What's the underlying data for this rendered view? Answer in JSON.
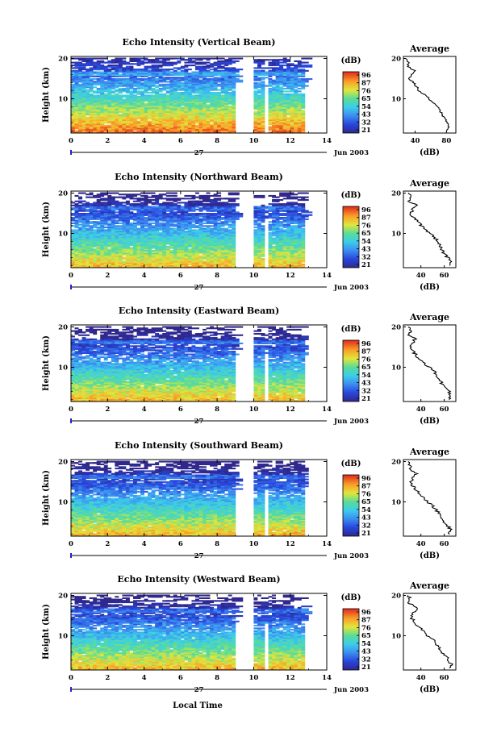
{
  "figure": {
    "xlabel": "Local Time",
    "date_label": "27",
    "month_label": "Jun 2003",
    "unit_label": "(dB)",
    "colorbar_ticks": [
      "96",
      "87",
      "76",
      "65",
      "54",
      "43",
      "32",
      "21"
    ],
    "average_title": "Average",
    "average_xlabel": "(dB)"
  },
  "chart_data": [
    {
      "type": "heatmap",
      "title": "Echo Intensity (Vertical Beam)",
      "ylabel": "Height (km)",
      "x_ticks": [
        "0",
        "2",
        "4",
        "6",
        "8",
        "10",
        "12",
        "14"
      ],
      "y_ticks": [
        "20",
        "10"
      ],
      "xlim": [
        0,
        14
      ],
      "ylim": [
        1.5,
        20.5
      ],
      "z_range": [
        21,
        96
      ],
      "data_gaps_hours": [
        [
          9.0,
          10.0
        ],
        [
          10.55,
          10.8
        ],
        [
          12.7,
          14.0
        ]
      ],
      "average_profile": {
        "x_ticks": [
          "40",
          "80"
        ],
        "y_ticks": [
          "20",
          "10"
        ],
        "xlim": [
          25,
          92
        ],
        "height_km": [
          2,
          3,
          4,
          5,
          6,
          7,
          8,
          9,
          10,
          11,
          12,
          13,
          14,
          15,
          16,
          17,
          18,
          19,
          20
        ],
        "db": [
          80,
          84,
          82,
          78,
          75,
          72,
          68,
          64,
          58,
          52,
          45,
          42,
          38,
          32,
          35,
          40,
          30,
          32,
          28
        ]
      }
    },
    {
      "type": "heatmap",
      "title": "Echo Intensity (Northward Beam)",
      "ylabel": "Height (km)",
      "x_ticks": [
        "0",
        "2",
        "4",
        "6",
        "8",
        "10",
        "12",
        "14"
      ],
      "y_ticks": [
        "20",
        "10"
      ],
      "xlim": [
        0,
        14
      ],
      "ylim": [
        1.5,
        20.5
      ],
      "z_range": [
        21,
        96
      ],
      "data_gaps_hours": [
        [
          9.0,
          10.0
        ],
        [
          10.55,
          10.8
        ],
        [
          12.7,
          14.0
        ]
      ],
      "average_profile": {
        "x_ticks": [
          "40",
          "60"
        ],
        "y_ticks": [
          "20",
          "10"
        ],
        "xlim": [
          25,
          70
        ],
        "height_km": [
          2,
          3,
          4,
          5,
          6,
          7,
          8,
          9,
          10,
          11,
          12,
          13,
          14,
          15,
          16,
          17,
          18,
          19,
          20
        ],
        "db": [
          64,
          66,
          63,
          60,
          58,
          56,
          54,
          52,
          48,
          44,
          40,
          37,
          34,
          31,
          33,
          36,
          30,
          31,
          29
        ]
      }
    },
    {
      "type": "heatmap",
      "title": "Echo Intensity (Eastward Beam)",
      "ylabel": "Height (km)",
      "x_ticks": [
        "0",
        "2",
        "4",
        "6",
        "8",
        "10",
        "12",
        "14"
      ],
      "y_ticks": [
        "20",
        "10"
      ],
      "xlim": [
        0,
        14
      ],
      "ylim": [
        1.5,
        20.5
      ],
      "z_range": [
        21,
        96
      ],
      "data_gaps_hours": [
        [
          9.0,
          10.0
        ],
        [
          10.55,
          10.8
        ],
        [
          12.7,
          14.0
        ]
      ],
      "average_profile": {
        "x_ticks": [
          "40",
          "60"
        ],
        "y_ticks": [
          "20",
          "10"
        ],
        "xlim": [
          25,
          70
        ],
        "height_km": [
          2,
          3,
          4,
          5,
          6,
          7,
          8,
          9,
          10,
          11,
          12,
          13,
          14,
          15,
          16,
          17,
          18,
          19,
          20
        ],
        "db": [
          64,
          66,
          64,
          61,
          58,
          56,
          54,
          51,
          47,
          43,
          39,
          36,
          33,
          31,
          33,
          35,
          30,
          31,
          29
        ]
      }
    },
    {
      "type": "heatmap",
      "title": "Echo Intensity (Southward Beam)",
      "ylabel": "Height (km)",
      "x_ticks": [
        "0",
        "2",
        "4",
        "6",
        "8",
        "10",
        "12",
        "14"
      ],
      "y_ticks": [
        "20",
        "10"
      ],
      "xlim": [
        0,
        14
      ],
      "ylim": [
        1.5,
        20.5
      ],
      "z_range": [
        21,
        96
      ],
      "data_gaps_hours": [
        [
          9.0,
          10.0
        ],
        [
          10.55,
          10.8
        ],
        [
          12.7,
          14.0
        ]
      ],
      "average_profile": {
        "x_ticks": [
          "40",
          "60"
        ],
        "y_ticks": [
          "20",
          "10"
        ],
        "xlim": [
          25,
          70
        ],
        "height_km": [
          2,
          3,
          4,
          5,
          6,
          7,
          8,
          9,
          10,
          11,
          12,
          13,
          14,
          15,
          16,
          17,
          18,
          19,
          20
        ],
        "db": [
          64,
          66,
          63,
          60,
          58,
          56,
          53,
          50,
          46,
          42,
          39,
          36,
          33,
          31,
          33,
          36,
          30,
          31,
          29
        ]
      }
    },
    {
      "type": "heatmap",
      "title": "Echo Intensity (Westward Beam)",
      "ylabel": "Height (km)",
      "x_ticks": [
        "0",
        "2",
        "4",
        "6",
        "8",
        "10",
        "12",
        "14"
      ],
      "y_ticks": [
        "20",
        "10"
      ],
      "xlim": [
        0,
        14
      ],
      "ylim": [
        1.5,
        20.5
      ],
      "z_range": [
        21,
        96
      ],
      "data_gaps_hours": [
        [
          9.0,
          10.0
        ],
        [
          10.55,
          10.8
        ],
        [
          12.7,
          14.0
        ]
      ],
      "average_profile": {
        "x_ticks": [
          "40",
          "60"
        ],
        "y_ticks": [
          "20",
          "10"
        ],
        "xlim": [
          25,
          70
        ],
        "height_km": [
          2,
          3,
          4,
          5,
          6,
          7,
          8,
          9,
          10,
          11,
          12,
          13,
          14,
          15,
          16,
          17,
          18,
          19,
          20
        ],
        "db": [
          64,
          66,
          64,
          61,
          58,
          56,
          53,
          50,
          46,
          43,
          39,
          36,
          33,
          31,
          34,
          37,
          30,
          31,
          29
        ]
      }
    }
  ]
}
